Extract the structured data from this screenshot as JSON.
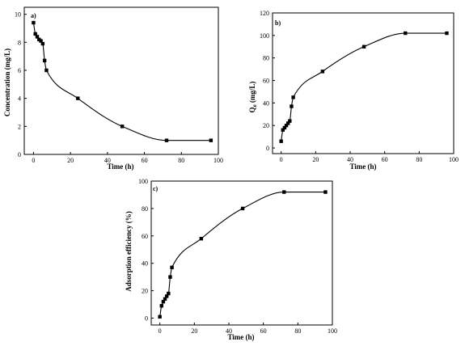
{
  "chart_data": [
    {
      "type": "line",
      "panel_label": "a)",
      "xlabel": "Time (h)",
      "ylabel": "Concentration (mg/L)",
      "xlim": [
        -5,
        100
      ],
      "ylim": [
        0,
        10.5
      ],
      "xticks": [
        0,
        20,
        40,
        60,
        80,
        100
      ],
      "yticks": [
        0,
        2,
        4,
        6,
        8,
        10
      ],
      "series": [
        {
          "x": [
            0,
            1,
            2,
            3,
            4,
            5,
            6,
            7,
            24,
            48,
            72,
            96
          ],
          "y": [
            9.4,
            8.6,
            8.4,
            8.2,
            8.1,
            7.9,
            6.7,
            6.0,
            4.0,
            2.0,
            1.0,
            1.0
          ]
        }
      ]
    },
    {
      "type": "line",
      "panel_label": "b)",
      "xlabel": "Time (h)",
      "ylabel": "Qe (mg/L)",
      "ylabel_main": "Q",
      "ylabel_sub": "e",
      "ylabel_rest": " (mg/L)",
      "xlim": [
        -5,
        100
      ],
      "ylim": [
        -5,
        120
      ],
      "xticks": [
        0,
        20,
        40,
        60,
        80,
        100
      ],
      "yticks": [
        0,
        20,
        40,
        60,
        80,
        100,
        120
      ],
      "series": [
        {
          "x": [
            0,
            1,
            2,
            3,
            4,
            5,
            6,
            7,
            24,
            48,
            72,
            96
          ],
          "y": [
            6,
            16,
            18,
            20,
            22,
            24,
            37,
            45,
            68,
            90,
            102,
            102
          ]
        }
      ]
    },
    {
      "type": "line",
      "panel_label": "c)",
      "xlabel": "Time (h)",
      "ylabel": "Adsorption efficiency (%)",
      "xlim": [
        -5,
        100
      ],
      "ylim": [
        -5,
        100
      ],
      "xticks": [
        0,
        20,
        40,
        60,
        80,
        100
      ],
      "yticks": [
        0,
        20,
        40,
        60,
        80,
        100
      ],
      "series": [
        {
          "x": [
            0,
            1,
            2,
            3,
            4,
            5,
            6,
            7,
            24,
            48,
            72,
            96
          ],
          "y": [
            1,
            9,
            12,
            14,
            16,
            18,
            30,
            37,
            58,
            80,
            92,
            92
          ]
        }
      ]
    }
  ]
}
